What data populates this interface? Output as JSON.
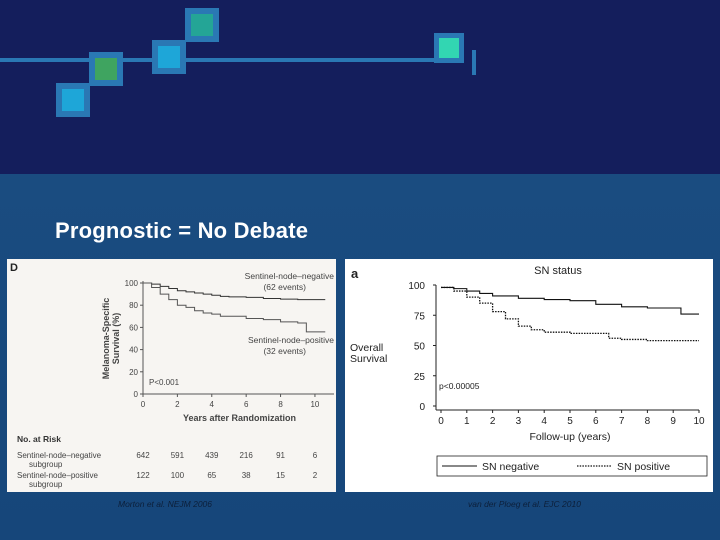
{
  "slide": {
    "title": "Prognostic = No Debate",
    "caption_left": "Morton et al. NEJM 2006",
    "caption_right": "van der Ploeg et al. EJC 2010",
    "colors": {
      "top_band": "#141e5c",
      "bottom_band": "#184a7e",
      "accent": "#2a78b4"
    }
  },
  "chart_data": [
    {
      "type": "line",
      "panel_label": "D",
      "title": "",
      "xlabel": "Years after Randomization",
      "ylabel_lines": [
        "Melanoma-Specific",
        "Survival (%)"
      ],
      "xlim": [
        0,
        11
      ],
      "ylim": [
        0,
        100
      ],
      "xticks": [
        0,
        2,
        4,
        6,
        8,
        10
      ],
      "yticks": [
        0,
        20,
        40,
        60,
        80,
        100
      ],
      "pvalue": "P<0.001",
      "series": [
        {
          "name": "Sentinel-node–negative",
          "events": "(62 events)",
          "style": "solid",
          "x": [
            0,
            0.5,
            1,
            1.5,
            2,
            2.5,
            3,
            3.5,
            4,
            4.5,
            5,
            6,
            7,
            8,
            9,
            10,
            10.6
          ],
          "y": [
            100,
            99,
            97,
            95,
            93,
            92,
            91,
            90,
            89,
            88,
            87.5,
            87,
            86,
            85.5,
            85,
            85,
            85
          ]
        },
        {
          "name": "Sentinel-node–positive",
          "events": "(32 events)",
          "style": "solid",
          "x": [
            0,
            0.5,
            1,
            1.5,
            2,
            2.5,
            3,
            3.5,
            4,
            4.5,
            5,
            6,
            7,
            8,
            9,
            9.5,
            10,
            10.6
          ],
          "y": [
            100,
            96,
            90,
            85,
            80,
            78,
            75,
            73,
            72,
            70,
            70,
            68,
            67,
            65,
            64,
            56,
            56,
            56
          ]
        }
      ],
      "risk_table": {
        "heading": "No. at Risk",
        "rows": [
          {
            "label": "Sentinel-node–negative subgroup",
            "values": [
              "642",
              "591",
              "439",
              "216",
              "91",
              "6"
            ]
          },
          {
            "label": "Sentinel-node–positive subgroup",
            "values": [
              "122",
              "100",
              "65",
              "38",
              "15",
              "2"
            ]
          }
        ]
      }
    },
    {
      "type": "line",
      "panel_label": "a",
      "title": "SN status",
      "xlabel": "Follow-up (years)",
      "ylabel_lines": [
        "Overall",
        "Survival"
      ],
      "xlim": [
        0,
        10
      ],
      "ylim": [
        0,
        100
      ],
      "xticks": [
        0,
        1,
        2,
        3,
        4,
        5,
        6,
        7,
        8,
        9,
        10
      ],
      "yticks": [
        0,
        25,
        50,
        75,
        100
      ],
      "pvalue": "p<0.00005",
      "series": [
        {
          "name": "SN negative",
          "style": "solid",
          "x": [
            0,
            0.5,
            1,
            1.5,
            2,
            3,
            4,
            5,
            6,
            7,
            8,
            9,
            9.3,
            10
          ],
          "y": [
            98,
            97,
            95,
            93,
            91,
            89,
            88,
            87,
            84,
            82,
            81,
            81,
            76,
            76
          ]
        },
        {
          "name": "SN positive",
          "style": "dotted",
          "x": [
            0,
            0.5,
            1,
            1.5,
            2,
            2.5,
            3,
            3.5,
            4,
            5,
            6,
            6.5,
            7,
            8,
            9,
            10
          ],
          "y": [
            98,
            95,
            90,
            85,
            78,
            72,
            66,
            63,
            61,
            60,
            60,
            56,
            55,
            54,
            54,
            54
          ]
        }
      ]
    }
  ]
}
